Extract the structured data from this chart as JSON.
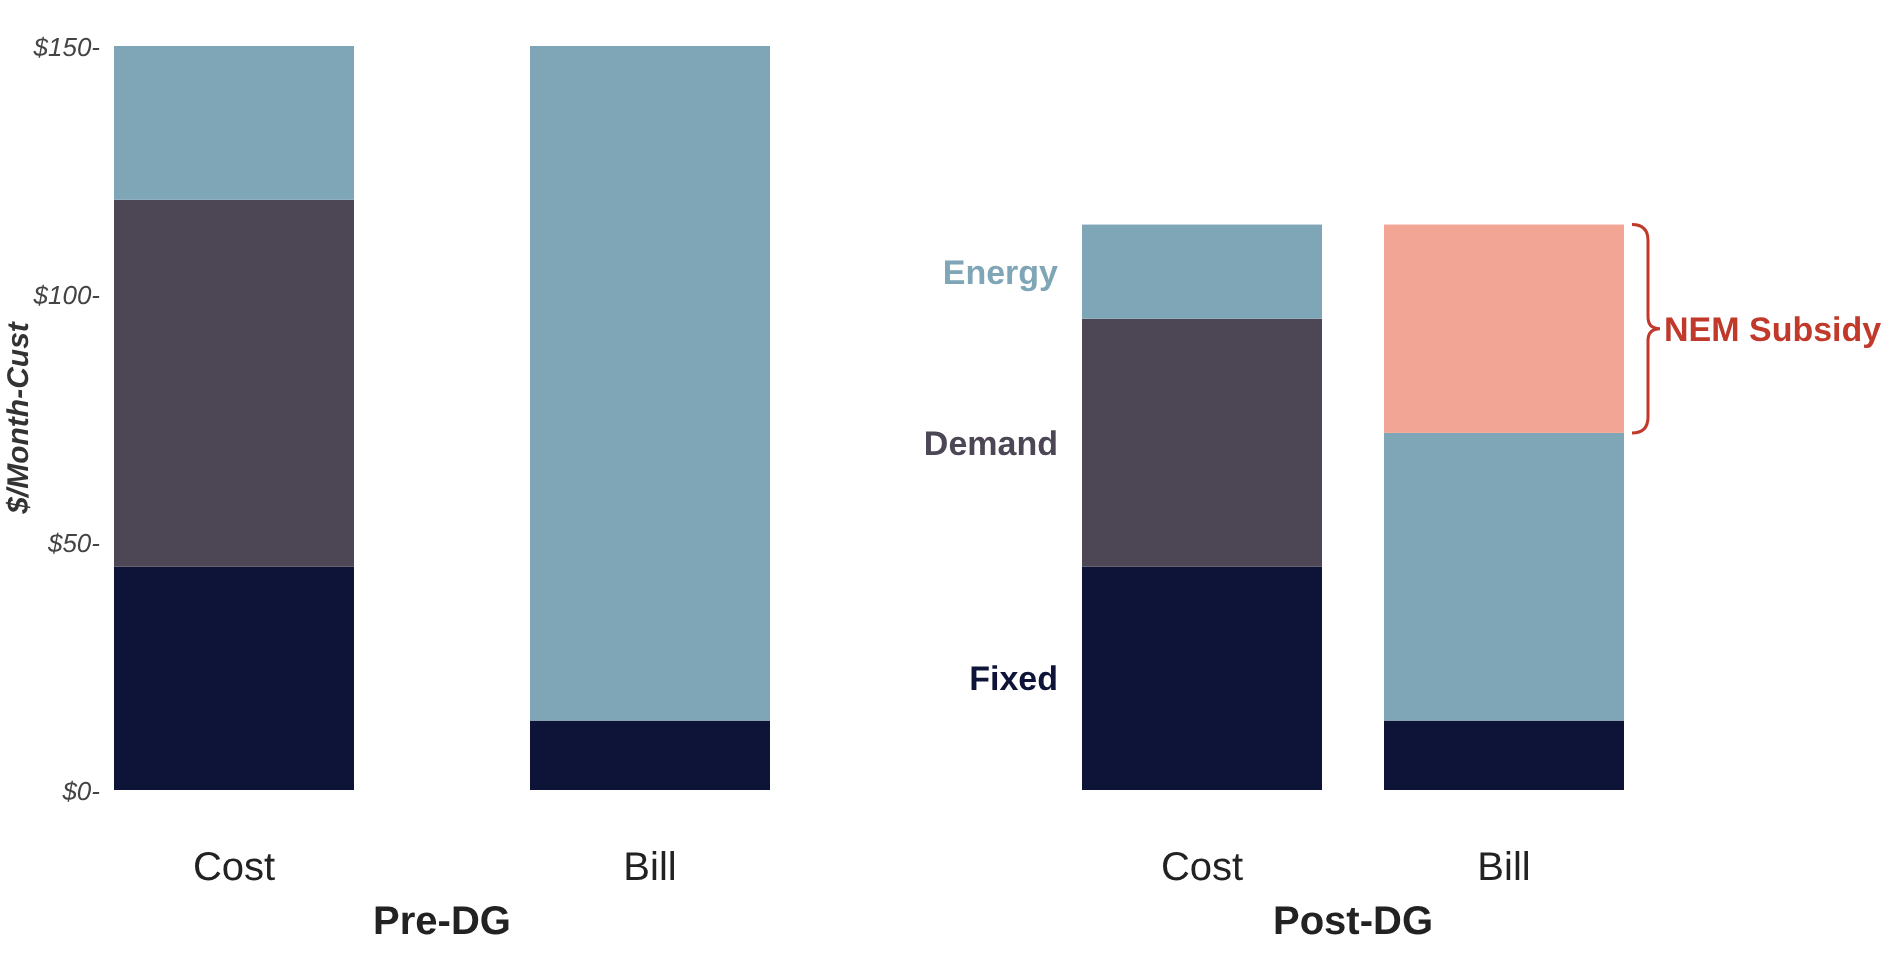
{
  "chart_data": {
    "type": "bar",
    "stacked": true,
    "ylabel": "$/Month-Cust",
    "categories": [
      "Cost",
      "Bill",
      "Cost",
      "Bill"
    ],
    "series": [
      {
        "name": "Fixed",
        "color": "#0e1438",
        "values": [
          45,
          14,
          45,
          14
        ]
      },
      {
        "name": "Demand",
        "color": "#4d4655",
        "values": [
          74,
          null,
          50,
          null
        ]
      },
      {
        "name": "Energy",
        "color": "#7ea6b7",
        "values": [
          31,
          136,
          19,
          58
        ]
      },
      {
        "name": "NEM Subsidy",
        "color": "#f2a595",
        "values": [
          null,
          null,
          null,
          42
        ]
      }
    ],
    "ylim": [
      0,
      150
    ],
    "yticks": [
      {
        "value": 0,
        "label": "$0-"
      },
      {
        "value": 50,
        "label": "$50-"
      },
      {
        "value": 100,
        "label": "$100-"
      },
      {
        "value": 150,
        "label": "$150-"
      }
    ],
    "grid": false,
    "annotations": [
      "Pre-DG",
      "Post-DG"
    ]
  }
}
